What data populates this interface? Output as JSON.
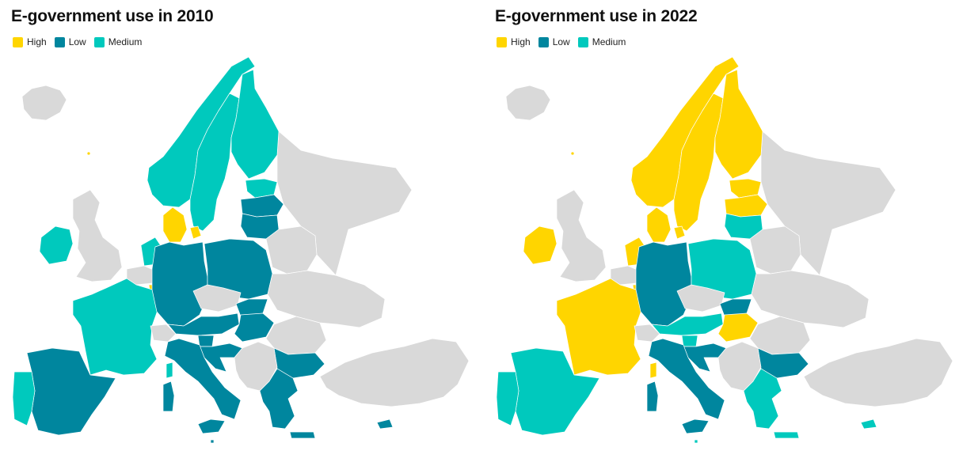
{
  "colors": {
    "High": "#FFD500",
    "Low": "#00869E",
    "Medium": "#00C9BD",
    "NoData": "#D9D9D9"
  },
  "legend": [
    "High",
    "Low",
    "Medium"
  ],
  "maps": [
    {
      "title": "E-government use in 2010",
      "countries": {
        "Norway": "Medium",
        "Sweden": "Medium",
        "Finland": "Medium",
        "Estonia": "Medium",
        "Latvia": "Low",
        "Lithuania": "Low",
        "Denmark": "High",
        "Ireland": "Medium",
        "UK": "NoData",
        "Iceland": "NoData",
        "Netherlands": "Medium",
        "Belgium": "NoData",
        "Luxembourg": "High",
        "France": "Medium",
        "Spain": "Low",
        "Portugal": "Medium",
        "Germany": "Low",
        "Poland": "Low",
        "Czechia": "NoData",
        "Slovakia": "Low",
        "Austria": "Low",
        "Switzerland": "NoData",
        "Hungary": "Low",
        "Slovenia": "Low",
        "Croatia": "Low",
        "Romania": "NoData",
        "Bulgaria": "Low",
        "Greece": "Low",
        "Italy": "Low",
        "Sardinia": "Low",
        "Sicily": "Low",
        "Corsica": "Medium",
        "Cyprus": "Low",
        "Malta": "Low",
        "Balkans": "NoData",
        "Belarus": "NoData",
        "Ukraine": "NoData",
        "Turkey": "NoData"
      }
    },
    {
      "title": "E-government use in 2022",
      "countries": {
        "Norway": "High",
        "Sweden": "High",
        "Finland": "High",
        "Estonia": "High",
        "Latvia": "High",
        "Lithuania": "Medium",
        "Denmark": "High",
        "Ireland": "High",
        "UK": "NoData",
        "Iceland": "NoData",
        "Netherlands": "High",
        "Belgium": "NoData",
        "Luxembourg": "High",
        "France": "High",
        "Spain": "Medium",
        "Portugal": "Medium",
        "Germany": "Low",
        "Poland": "Medium",
        "Czechia": "NoData",
        "Slovakia": "Low",
        "Austria": "Medium",
        "Switzerland": "NoData",
        "Hungary": "High",
        "Slovenia": "Medium",
        "Croatia": "Low",
        "Romania": "NoData",
        "Bulgaria": "Low",
        "Greece": "Medium",
        "Italy": "Low",
        "Sardinia": "Low",
        "Sicily": "Low",
        "Corsica": "High",
        "Cyprus": "Medium",
        "Malta": "Medium",
        "Balkans": "NoData",
        "Belarus": "NoData",
        "Ukraine": "NoData",
        "Turkey": "NoData"
      }
    }
  ]
}
